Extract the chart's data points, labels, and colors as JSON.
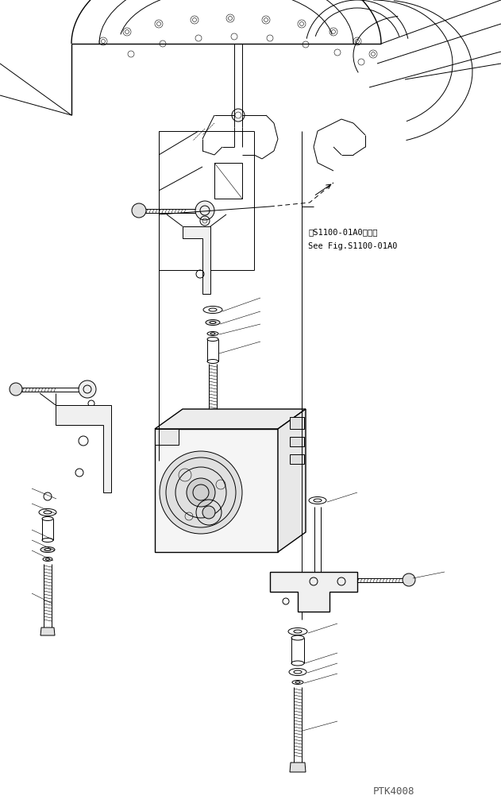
{
  "bg_color": "#ffffff",
  "line_color": "#000000",
  "fig_width": 6.31,
  "fig_height": 10.16,
  "dpi": 100,
  "annotation_text1": "第S1100-01A0図参照",
  "annotation_text2": "See Fig.S1100-01A0",
  "watermark_text": "PTK4008",
  "lw": 0.7,
  "tlw": 0.4,
  "thw": 1.0
}
